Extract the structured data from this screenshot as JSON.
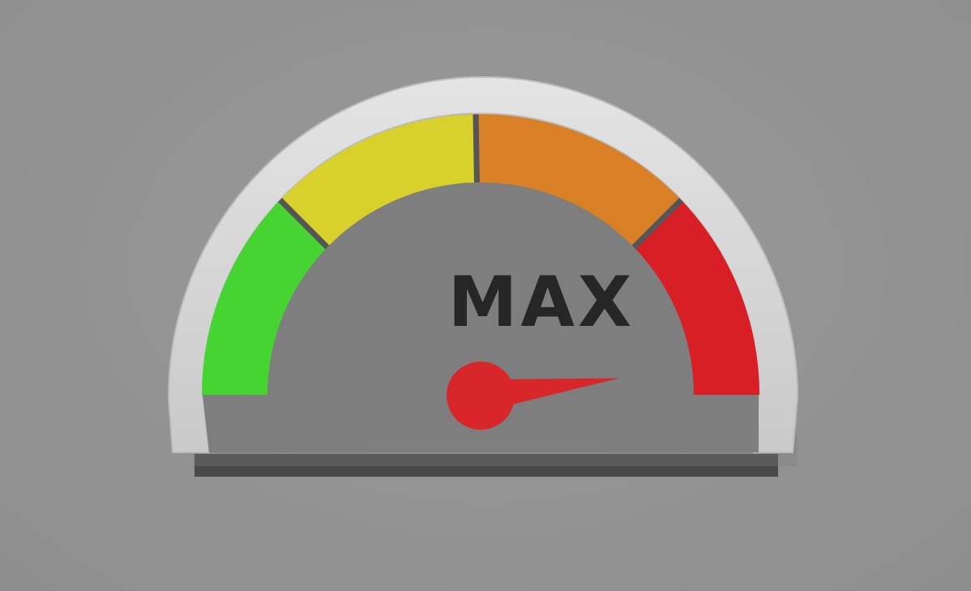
{
  "gauge": {
    "label": "MAX",
    "level": 0.96,
    "zones": [
      {
        "name": "low",
        "color": "#46d432"
      },
      {
        "name": "medium",
        "color": "#d8d12c"
      },
      {
        "name": "high",
        "color": "#d98026"
      },
      {
        "name": "max",
        "color": "#d81f26"
      }
    ],
    "needle_color": "#d8262b",
    "face_color": "#7e7e7e",
    "rim_color": "#d5d5d5",
    "label_color": "#262626"
  }
}
